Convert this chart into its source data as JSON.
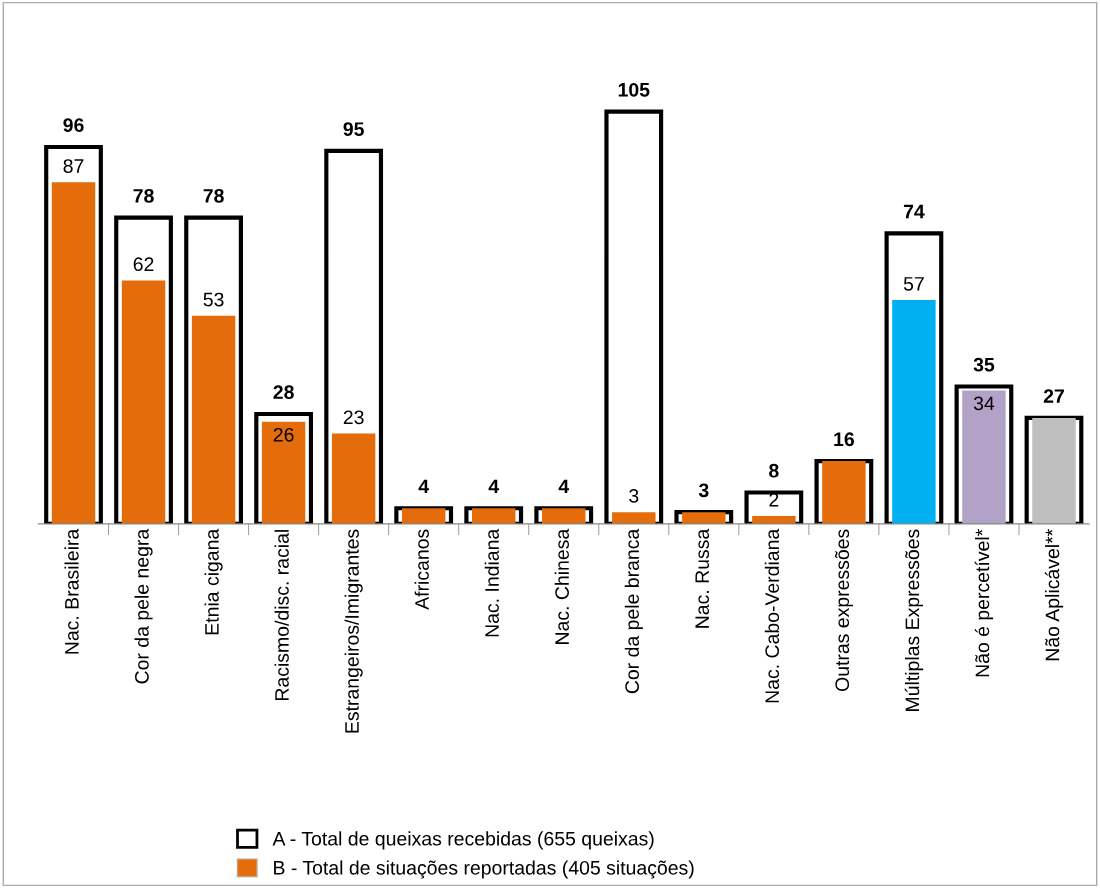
{
  "chart_data": {
    "type": "bar",
    "categories": [
      "Nac. Brasileira",
      "Cor da pele negra",
      "Etnia cigana",
      "Racismo/disc. racial",
      "Estrangeiros/Imigrantes",
      "Africanos",
      "Nac. Indiana",
      "Nac. Chinesa",
      "Cor da pele branca",
      "Nac. Russa",
      "Nac. Cabo-Verdiana",
      "Outras expressões",
      "Múltiplas Expressões",
      "Não é percetível*",
      "Não Aplicável**"
    ],
    "series": [
      {
        "name": "A - Total de queixas recebidas (655 queixas)",
        "color": "#ffffff",
        "values": [
          96,
          78,
          78,
          28,
          95,
          4,
          4,
          4,
          105,
          3,
          8,
          16,
          74,
          35,
          27
        ],
        "data_labels": true
      },
      {
        "name": "B - Total de situações reportadas (405 situações)",
        "colors": [
          "#e46c0a",
          "#e46c0a",
          "#e46c0a",
          "#e46c0a",
          "#e46c0a",
          "#e46c0a",
          "#e46c0a",
          "#e46c0a",
          "#e46c0a",
          "#e46c0a",
          "#e46c0a",
          "#e46c0a",
          "#00b0f0",
          "#b3a2c7",
          "#bfbfbf"
        ],
        "values": [
          87,
          62,
          53,
          26,
          23,
          4,
          4,
          4,
          3,
          3,
          2,
          16,
          57,
          34,
          27
        ],
        "value_labels": [
          "87",
          "62",
          "53",
          "26",
          "23",
          null,
          null,
          null,
          "3",
          null,
          "2",
          null,
          "57",
          "34",
          null
        ]
      }
    ],
    "legend": "bottom",
    "grid": false
  }
}
